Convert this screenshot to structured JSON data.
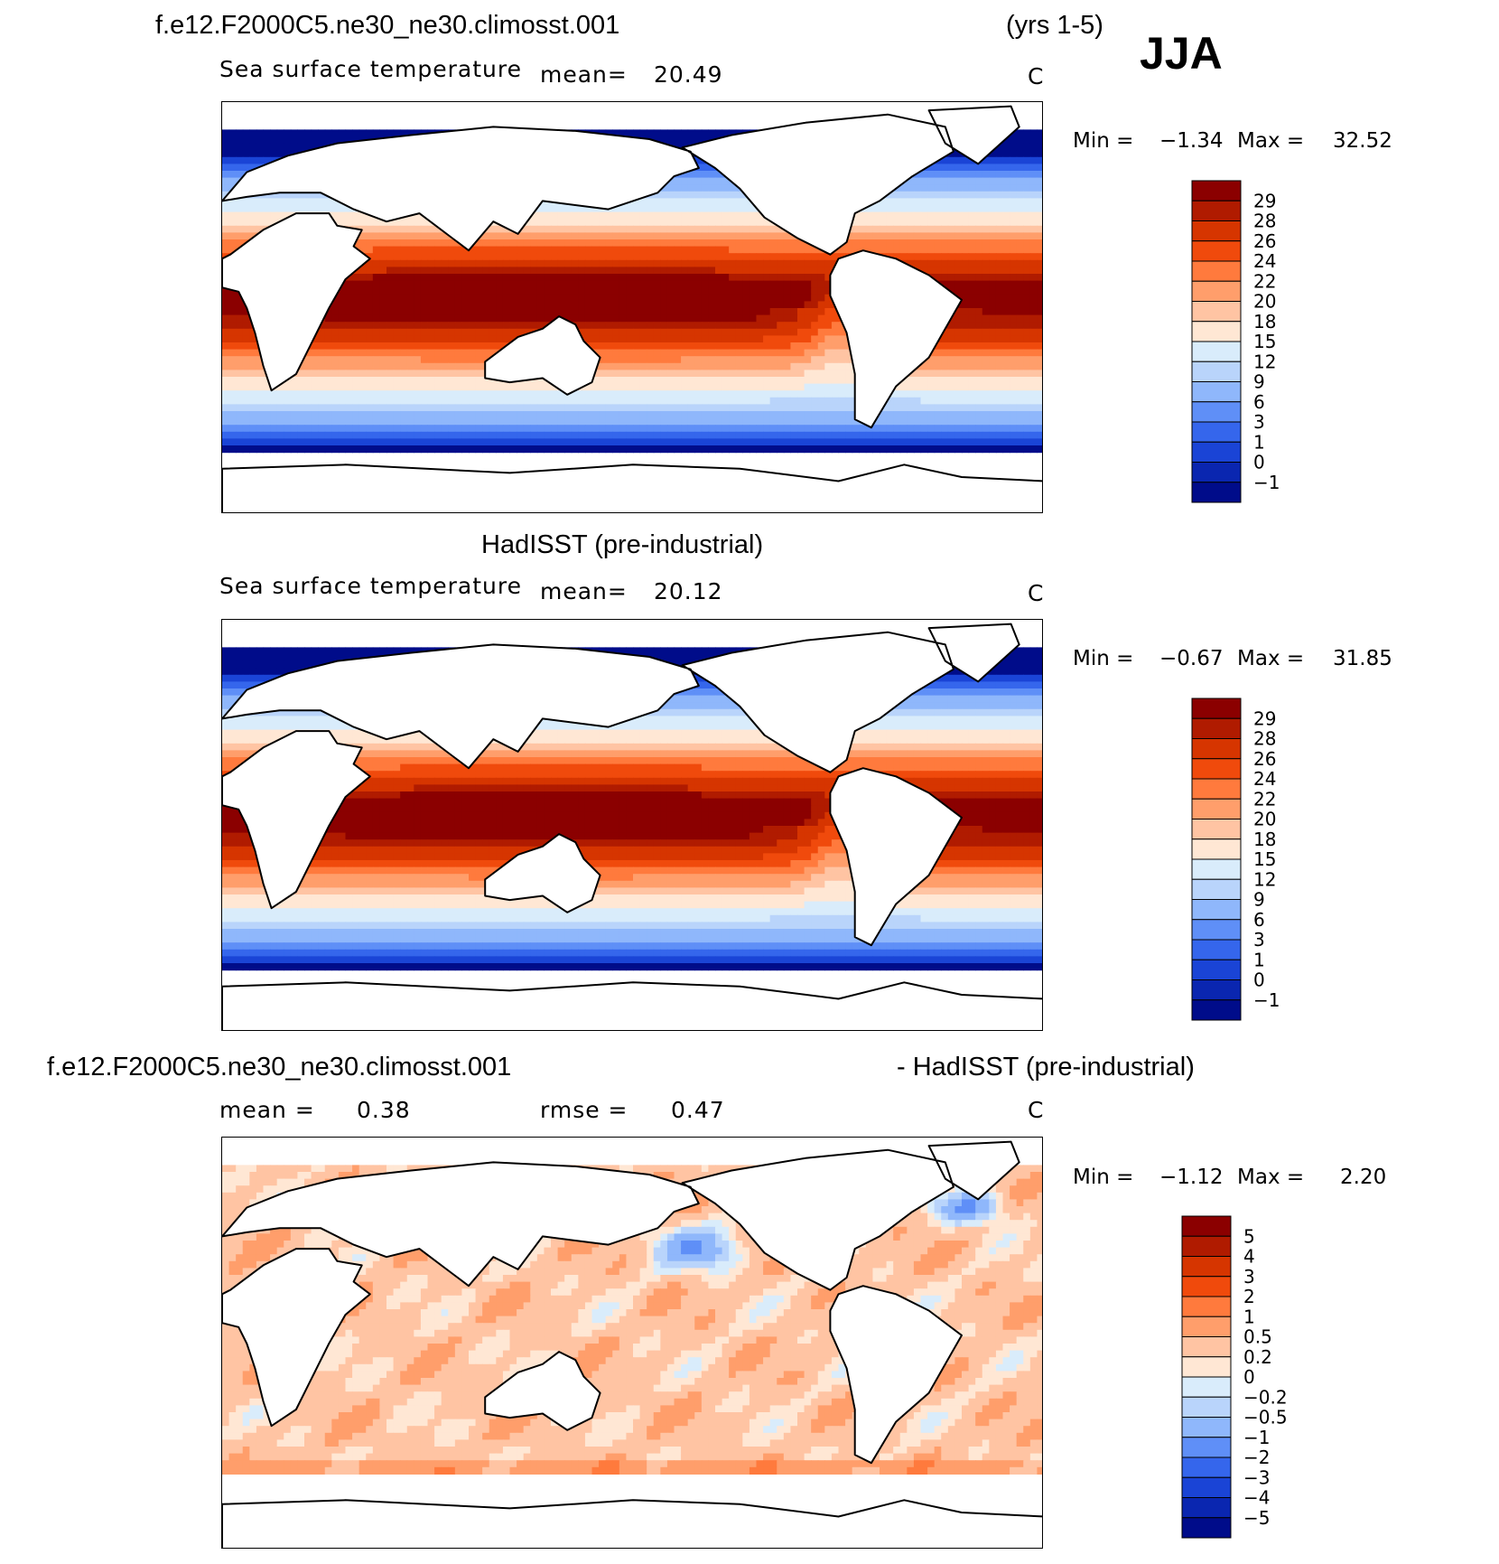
{
  "header": {
    "case_name": "f.e12.F2000C5.ne30_ne30.climosst.001",
    "years": "(yrs 1-5)",
    "season": "JJA"
  },
  "panels": [
    {
      "id": "model",
      "title": "f.e12.F2000C5.ne30_ne30.climosst.001",
      "variable": "Sea surface temperature",
      "mean_label": "mean=",
      "mean_value": "20.49",
      "units": "C",
      "min_label": "Min =",
      "min_value": "−1.34",
      "max_label": "Max =",
      "max_value": "32.52"
    },
    {
      "id": "obs",
      "title": "HadISST (pre-industrial)",
      "variable": "Sea surface temperature",
      "mean_label": "mean=",
      "mean_value": "20.12",
      "units": "C",
      "min_label": "Min =",
      "min_value": "−0.67",
      "max_label": "Max =",
      "max_value": "31.85"
    },
    {
      "id": "diff",
      "title_left": "f.e12.F2000C5.ne30_ne30.climosst.001",
      "title_right": "- HadISST (pre-industrial)",
      "mean_label": "mean =",
      "mean_value": "0.38",
      "rmse_label": "rmse =",
      "rmse_value": "0.47",
      "units": "C",
      "min_label": "Min =",
      "min_value": "−1.12",
      "max_label": "Max =",
      "max_value": "2.20"
    }
  ],
  "chart_data": [
    {
      "type": "heatmap",
      "title": "f.e12.F2000C5.ne30_ne30.climosst.001 (yrs 1-5) JJA",
      "subtitle": "Sea surface temperature",
      "units": "C",
      "mean": 20.49,
      "min": -1.34,
      "max": 32.52,
      "colorbar_levels": [
        "29",
        "28",
        "26",
        "24",
        "22",
        "20",
        "18",
        "15",
        "12",
        "9",
        "6",
        "3",
        "1",
        "0",
        "−1"
      ],
      "colorbar_colors": [
        "#8b0000",
        "#b01b00",
        "#d63500",
        "#f04a0c",
        "#ff7a3d",
        "#ff9e6b",
        "#ffc4a3",
        "#ffe7d4",
        "#d9ecfb",
        "#b9d4fb",
        "#8fb7fb",
        "#5f8ff7",
        "#3566ec",
        "#1a44d6",
        "#0a26b0",
        "#000c8a"
      ]
    },
    {
      "type": "heatmap",
      "title": "HadISST (pre-industrial)",
      "subtitle": "Sea surface temperature",
      "units": "C",
      "mean": 20.12,
      "min": -0.67,
      "max": 31.85,
      "colorbar_levels": [
        "29",
        "28",
        "26",
        "24",
        "22",
        "20",
        "18",
        "15",
        "12",
        "9",
        "6",
        "3",
        "1",
        "0",
        "−1"
      ],
      "colorbar_colors": [
        "#8b0000",
        "#b01b00",
        "#d63500",
        "#f04a0c",
        "#ff7a3d",
        "#ff9e6b",
        "#ffc4a3",
        "#ffe7d4",
        "#d9ecfb",
        "#b9d4fb",
        "#8fb7fb",
        "#5f8ff7",
        "#3566ec",
        "#1a44d6",
        "#0a26b0",
        "#000c8a"
      ]
    },
    {
      "type": "heatmap",
      "title": "f.e12.F2000C5.ne30_ne30.climosst.001 - HadISST (pre-industrial)",
      "units": "C",
      "mean": 0.38,
      "rmse": 0.47,
      "min": -1.12,
      "max": 2.2,
      "colorbar_levels": [
        "5",
        "4",
        "3",
        "2",
        "1",
        "0.5",
        "0.2",
        "0",
        "−0.2",
        "−0.5",
        "−1",
        "−2",
        "−3",
        "−4",
        "−5"
      ],
      "colorbar_colors": [
        "#8b0000",
        "#b01b00",
        "#d63500",
        "#f04a0c",
        "#ff7a3d",
        "#ff9e6b",
        "#ffc4a3",
        "#ffe7d4",
        "#d9ecfb",
        "#b9d4fb",
        "#8fb7fb",
        "#5f8ff7",
        "#3566ec",
        "#1a44d6",
        "#0a26b0",
        "#000c8a"
      ]
    }
  ]
}
